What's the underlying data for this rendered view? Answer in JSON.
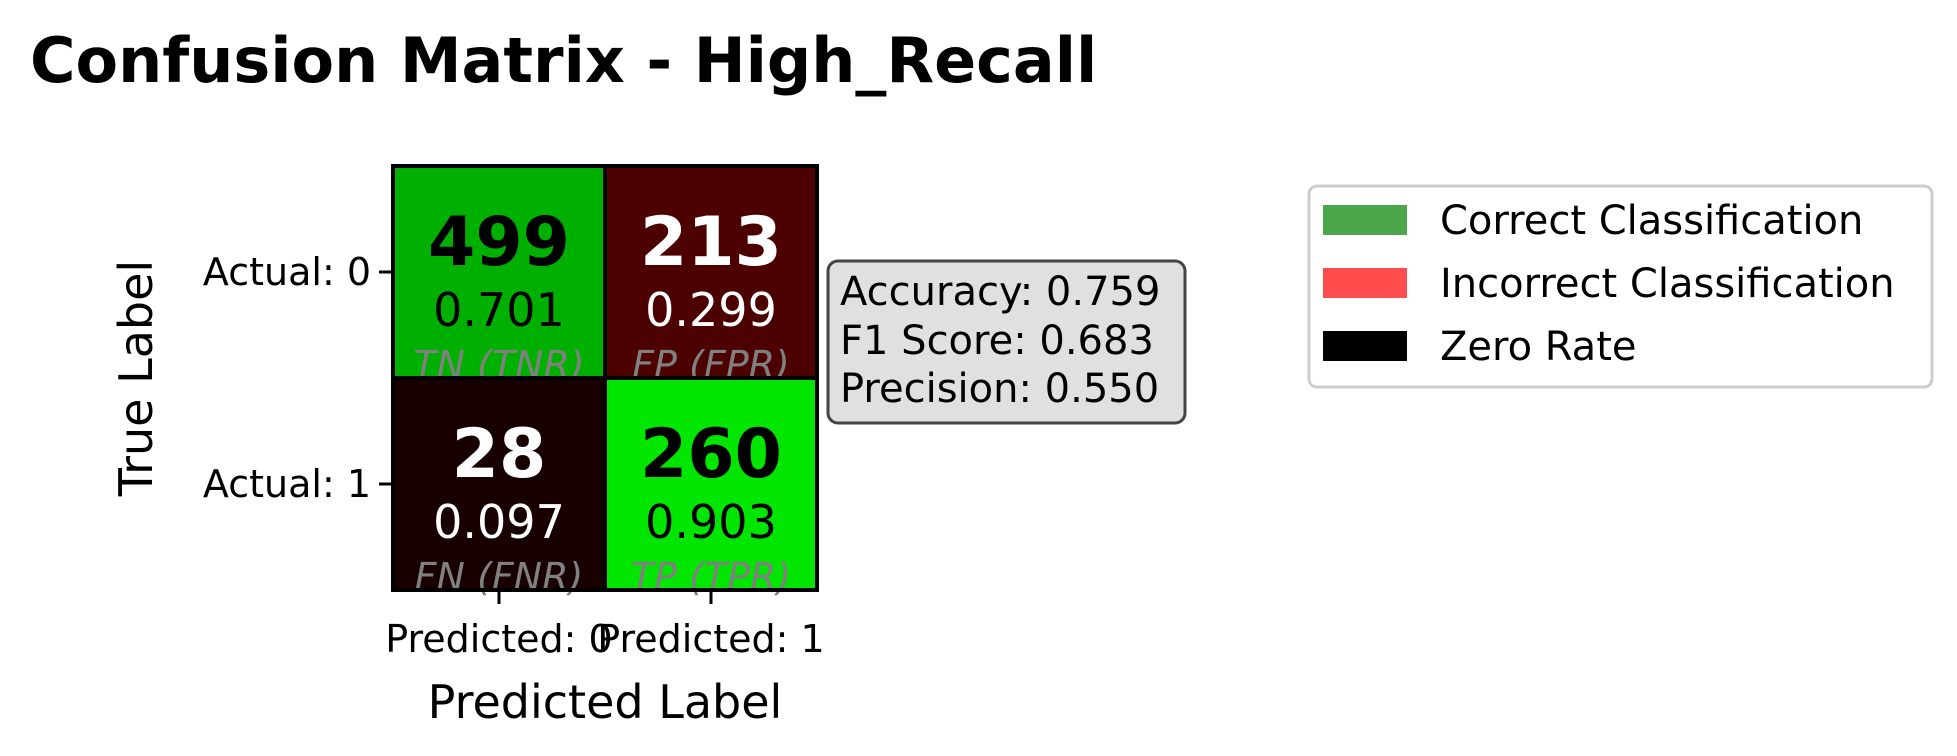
{
  "chart_data": {
    "type": "heatmap",
    "title": "Confusion Matrix - High_Recall",
    "xlabel": "Predicted Label",
    "ylabel": "True Label",
    "x_categories": [
      "Predicted: 0",
      "Predicted: 1"
    ],
    "y_categories": [
      "Actual: 0",
      "Actual: 1"
    ],
    "cells": [
      {
        "row": 0,
        "col": 0,
        "count": "499",
        "rate": "0.701",
        "label": "TN (TNR)",
        "color": "#00b000",
        "text_color": "#000000"
      },
      {
        "row": 0,
        "col": 1,
        "count": "213",
        "rate": "0.299",
        "label": "FP (FPR)",
        "color": "#4c0000",
        "text_color": "#ffffff"
      },
      {
        "row": 1,
        "col": 0,
        "count": "28",
        "rate": "0.097",
        "label": "FN (FNR)",
        "color": "#190000",
        "text_color": "#ffffff"
      },
      {
        "row": 1,
        "col": 1,
        "count": "260",
        "rate": "0.903",
        "label": "TP (TPR)",
        "color": "#00e600",
        "text_color": "#000000"
      }
    ],
    "stats": [
      "Accuracy: 0.759",
      "F1 Score: 0.683",
      "Precision: 0.550"
    ],
    "legend": {
      "placement": "right",
      "entries": [
        {
          "label": "Correct Classification",
          "color": "#4ca64c"
        },
        {
          "label": "Incorrect Classification",
          "color": "#ff4c4c"
        },
        {
          "label": "Zero Rate",
          "color": "#000000"
        }
      ]
    }
  }
}
